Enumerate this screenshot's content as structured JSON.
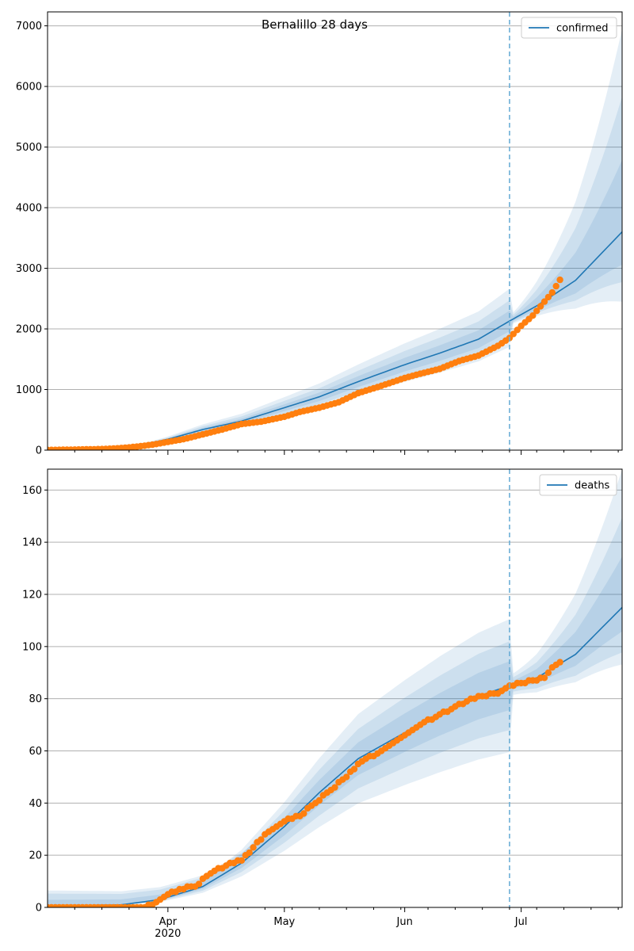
{
  "figure": {
    "title": "Bernalillo 28 days",
    "colors": {
      "band": "#1f77b4",
      "median": "#1f77b4",
      "observed": "#ff7f0e",
      "vline": "#6baed6",
      "grid": "#b0b0b0"
    }
  },
  "chart_data": [
    {
      "type": "line",
      "title": "Bernalillo 28 days",
      "xlabel": "",
      "ylabel": "",
      "x_axis": {
        "type": "date",
        "range": [
          "2020-03-01",
          "2020-07-27"
        ],
        "major_ticks": [
          {
            "date": "2020-04-01",
            "label": "Apr",
            "sublabel": "2020"
          },
          {
            "date": "2020-05-01",
            "label": "May"
          },
          {
            "date": "2020-06-01",
            "label": "Jun"
          },
          {
            "date": "2020-07-01",
            "label": "Jul"
          }
        ]
      },
      "ylim": [
        0,
        7230
      ],
      "yticks": [
        0,
        1000,
        2000,
        3000,
        4000,
        5000,
        6000,
        7000
      ],
      "grid": "horizontal",
      "legend": "top-right",
      "forecast_start": "2020-06-28",
      "series": [
        {
          "name": "confirmed",
          "median_knots": [
            [
              "2020-03-01",
              0
            ],
            [
              "2020-03-10",
              0
            ],
            [
              "2020-03-20",
              30
            ],
            [
              "2020-03-25",
              80
            ],
            [
              "2020-04-01",
              180
            ],
            [
              "2020-04-10",
              340
            ],
            [
              "2020-04-20",
              480
            ],
            [
              "2020-05-01",
              700
            ],
            [
              "2020-05-10",
              880
            ],
            [
              "2020-05-20",
              1130
            ],
            [
              "2020-06-01",
              1410
            ],
            [
              "2020-06-10",
              1600
            ],
            [
              "2020-06-20",
              1830
            ],
            [
              "2020-06-28",
              2130
            ],
            [
              "2020-07-05",
              2380
            ],
            [
              "2020-07-15",
              2800
            ],
            [
              "2020-07-27",
              3600
            ]
          ],
          "band_ratios": [
            [
              0.8,
              1.25
            ],
            [
              0.86,
              1.16
            ],
            [
              0.92,
              1.08
            ]
          ],
          "band_ratios_end": [
            [
              0.68,
              1.93
            ],
            [
              0.77,
              1.62
            ],
            [
              0.85,
              1.33
            ]
          ],
          "observed": [
            [
              "2020-03-01",
              3
            ],
            [
              "2020-03-04",
              5
            ],
            [
              "2020-03-07",
              8
            ],
            [
              "2020-03-10",
              12
            ],
            [
              "2020-03-13",
              15
            ],
            [
              "2020-03-16",
              20
            ],
            [
              "2020-03-19",
              30
            ],
            [
              "2020-03-22",
              45
            ],
            [
              "2020-03-25",
              65
            ],
            [
              "2020-03-28",
              90
            ],
            [
              "2020-04-01",
              135
            ],
            [
              "2020-04-05",
              180
            ],
            [
              "2020-04-10",
              260
            ],
            [
              "2020-04-15",
              340
            ],
            [
              "2020-04-20",
              430
            ],
            [
              "2020-04-25",
              470
            ],
            [
              "2020-05-01",
              550
            ],
            [
              "2020-05-05",
              630
            ],
            [
              "2020-05-10",
              700
            ],
            [
              "2020-05-15",
              790
            ],
            [
              "2020-05-20",
              940
            ],
            [
              "2020-05-25",
              1040
            ],
            [
              "2020-06-01",
              1190
            ],
            [
              "2020-06-05",
              1260
            ],
            [
              "2020-06-10",
              1340
            ],
            [
              "2020-06-15",
              1470
            ],
            [
              "2020-06-20",
              1560
            ],
            [
              "2020-06-25",
              1720
            ],
            [
              "2020-06-28",
              1850
            ],
            [
              "2020-07-01",
              2050
            ],
            [
              "2020-07-04",
              2220
            ],
            [
              "2020-07-07",
              2450
            ],
            [
              "2020-07-09",
              2600
            ],
            [
              "2020-07-11",
              2810
            ]
          ]
        }
      ]
    },
    {
      "type": "line",
      "title": "",
      "xlabel": "",
      "ylabel": "",
      "x_axis": {
        "type": "date",
        "range": [
          "2020-03-01",
          "2020-07-27"
        ],
        "major_ticks": [
          {
            "date": "2020-04-01",
            "label": "Apr",
            "sublabel": "2020"
          },
          {
            "date": "2020-05-01",
            "label": "May"
          },
          {
            "date": "2020-06-01",
            "label": "Jun"
          },
          {
            "date": "2020-07-01",
            "label": "Jul"
          }
        ]
      },
      "ylim": [
        0,
        168
      ],
      "yticks": [
        0,
        20,
        40,
        60,
        80,
        100,
        120,
        140,
        160
      ],
      "grid": "horizontal",
      "legend": "top-right",
      "forecast_start": "2020-06-28",
      "series": [
        {
          "name": "deaths",
          "median_knots": [
            [
              "2020-03-01",
              0.5
            ],
            [
              "2020-03-20",
              1
            ],
            [
              "2020-03-30",
              3
            ],
            [
              "2020-04-10",
              8
            ],
            [
              "2020-04-20",
              17
            ],
            [
              "2020-05-01",
              31
            ],
            [
              "2020-05-10",
              44
            ],
            [
              "2020-05-20",
              57
            ],
            [
              "2020-06-01",
              67
            ],
            [
              "2020-06-10",
              74
            ],
            [
              "2020-06-20",
              81
            ],
            [
              "2020-06-28",
              85
            ],
            [
              "2020-07-05",
              88
            ],
            [
              "2020-07-15",
              97
            ],
            [
              "2020-07-27",
              115
            ]
          ],
          "band_abs_start": [
            2,
            4,
            5
          ],
          "band_ratios": [
            [
              0.7,
              1.3
            ],
            [
              0.8,
              1.2
            ],
            [
              0.89,
              1.11
            ]
          ],
          "band_ratios_end": [
            [
              0.81,
              1.46
            ],
            [
              0.85,
              1.3
            ],
            [
              0.92,
              1.17
            ]
          ],
          "observed": [
            [
              "2020-03-01",
              0
            ],
            [
              "2020-03-05",
              0
            ],
            [
              "2020-03-10",
              0
            ],
            [
              "2020-03-15",
              0
            ],
            [
              "2020-03-20",
              0
            ],
            [
              "2020-03-25",
              0
            ],
            [
              "2020-03-28",
              1
            ],
            [
              "2020-03-31",
              4
            ],
            [
              "2020-04-04",
              7
            ],
            [
              "2020-04-08",
              8
            ],
            [
              "2020-04-12",
              13
            ],
            [
              "2020-04-16",
              16
            ],
            [
              "2020-04-20",
              18
            ],
            [
              "2020-04-23",
              23
            ],
            [
              "2020-04-27",
              29
            ],
            [
              "2020-05-01",
              33
            ],
            [
              "2020-05-05",
              35
            ],
            [
              "2020-05-09",
              40
            ],
            [
              "2020-05-13",
              45
            ],
            [
              "2020-05-17",
              50
            ],
            [
              "2020-05-21",
              56
            ],
            [
              "2020-05-25",
              59
            ],
            [
              "2020-05-28",
              62
            ],
            [
              "2020-06-01",
              66
            ],
            [
              "2020-06-05",
              70
            ],
            [
              "2020-06-09",
              73
            ],
            [
              "2020-06-13",
              76
            ],
            [
              "2020-06-17",
              79
            ],
            [
              "2020-06-21",
              81
            ],
            [
              "2020-06-25",
              82
            ],
            [
              "2020-06-28",
              85
            ],
            [
              "2020-07-01",
              86
            ],
            [
              "2020-07-04",
              87
            ],
            [
              "2020-07-07",
              88
            ],
            [
              "2020-07-09",
              92
            ],
            [
              "2020-07-11",
              94
            ]
          ]
        }
      ]
    }
  ]
}
